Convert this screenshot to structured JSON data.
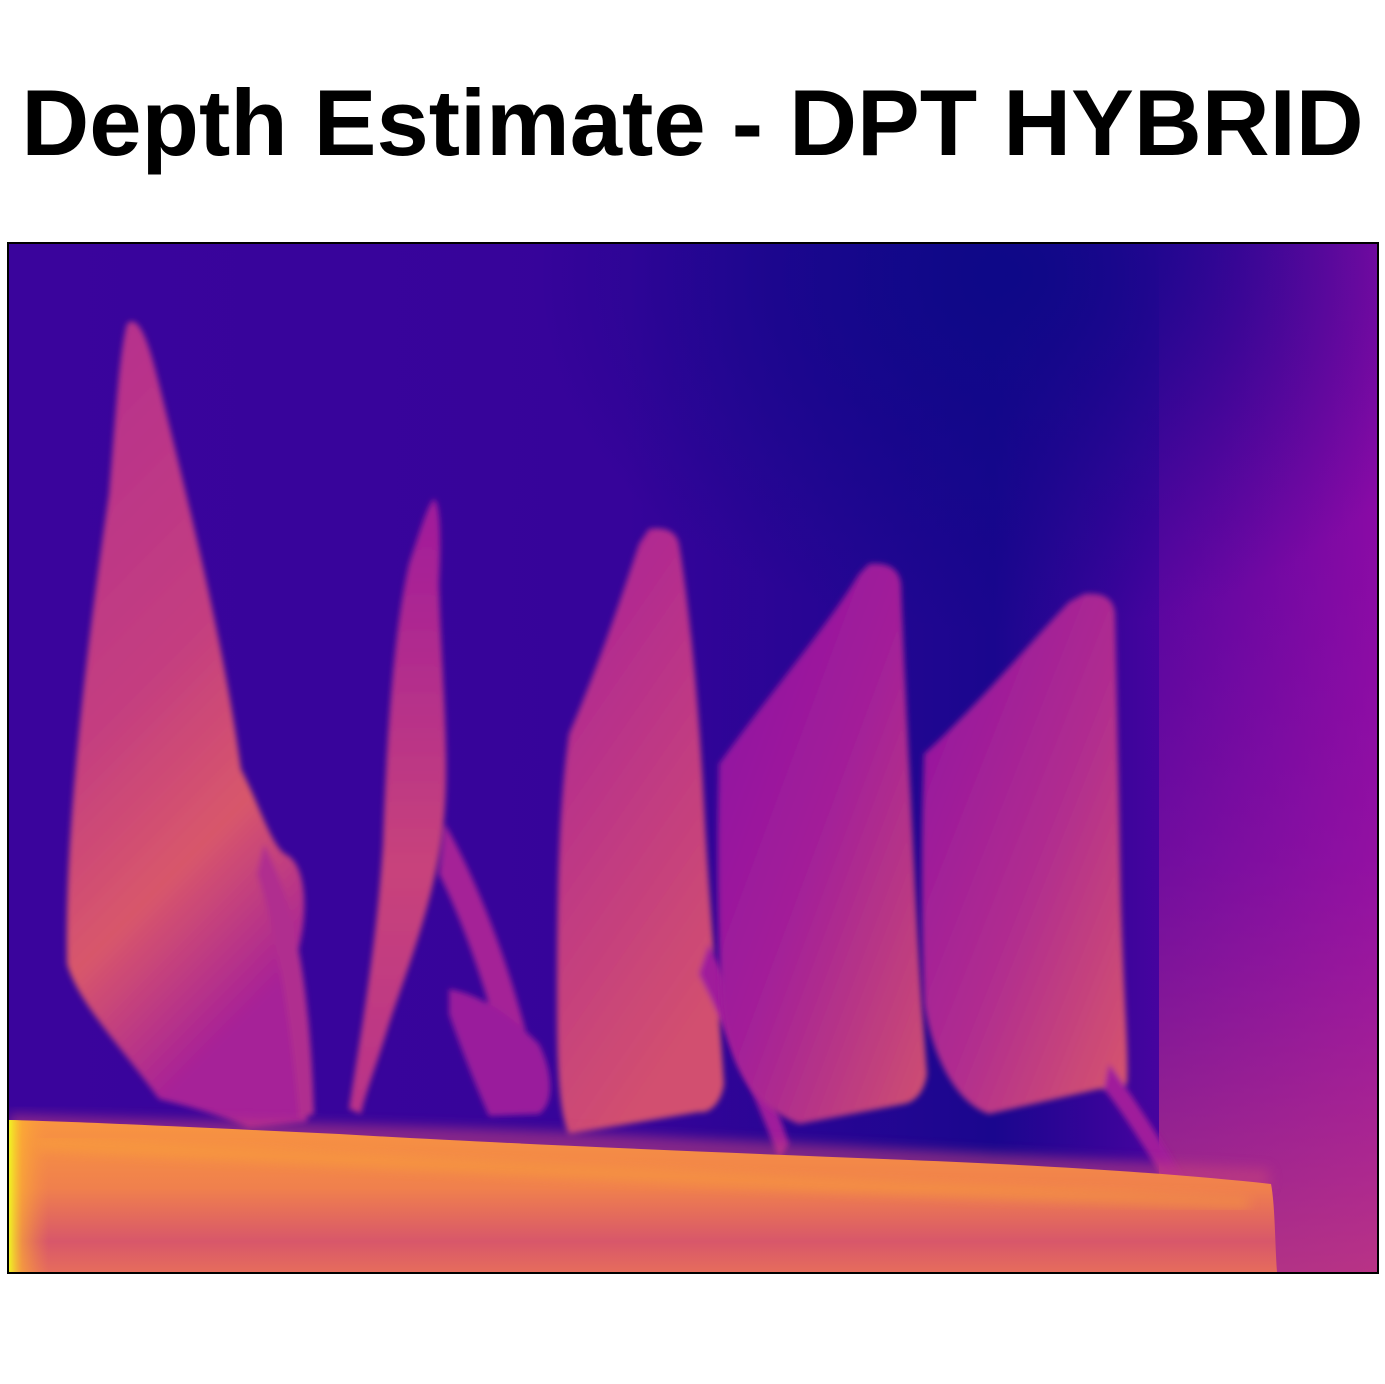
{
  "title": "Depth Estimate - DPT HYBRID",
  "colormap": {
    "name": "plasma",
    "far": "#0d0887",
    "mid_far": "#3c049b",
    "mid": "#7e03a8",
    "mid_near": "#cc4778",
    "near": "#f89540",
    "nearest": "#f0f921"
  }
}
